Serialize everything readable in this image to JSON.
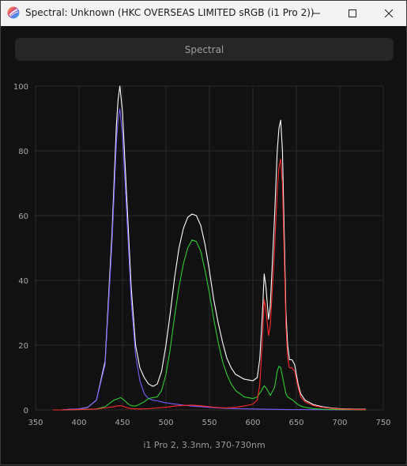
{
  "window": {
    "title": "Spectral: Unknown (HKC OVERSEAS LIMITED sRGB (i1 Pro 2))"
  },
  "tab": {
    "label": "Spectral"
  },
  "caption": "i1 Pro 2, 3.3nm, 370-730nm",
  "chart_data": {
    "type": "line",
    "title": "",
    "xlabel": "",
    "ylabel": "",
    "xlim": [
      350,
      750
    ],
    "ylim": [
      0,
      100
    ],
    "x_ticks": [
      350,
      400,
      450,
      500,
      550,
      600,
      650,
      700,
      750
    ],
    "y_ticks": [
      0,
      20,
      40,
      60,
      80,
      100
    ],
    "grid": true,
    "legend": "none",
    "series": [
      {
        "color": "#ffffff",
        "points": [
          [
            370,
            0
          ],
          [
            380,
            0
          ],
          [
            390,
            0.2
          ],
          [
            400,
            0.3
          ],
          [
            410,
            0.8
          ],
          [
            420,
            3
          ],
          [
            430,
            15
          ],
          [
            438,
            55
          ],
          [
            443,
            88
          ],
          [
            445,
            96
          ],
          [
            447,
            100
          ],
          [
            450,
            92
          ],
          [
            455,
            65
          ],
          [
            460,
            38
          ],
          [
            465,
            20
          ],
          [
            470,
            13
          ],
          [
            475,
            10
          ],
          [
            480,
            8
          ],
          [
            485,
            7.3
          ],
          [
            490,
            8
          ],
          [
            495,
            12
          ],
          [
            500,
            20
          ],
          [
            505,
            30
          ],
          [
            510,
            41
          ],
          [
            515,
            50
          ],
          [
            520,
            56
          ],
          [
            525,
            59.5
          ],
          [
            530,
            60.5
          ],
          [
            535,
            60
          ],
          [
            540,
            57
          ],
          [
            545,
            51
          ],
          [
            550,
            43
          ],
          [
            555,
            34
          ],
          [
            560,
            27
          ],
          [
            565,
            21
          ],
          [
            570,
            16
          ],
          [
            575,
            13
          ],
          [
            580,
            11
          ],
          [
            590,
            9.5
          ],
          [
            600,
            9
          ],
          [
            605,
            10
          ],
          [
            608,
            16
          ],
          [
            611,
            30
          ],
          [
            613,
            42
          ],
          [
            615,
            38
          ],
          [
            618,
            28
          ],
          [
            620,
            32
          ],
          [
            625,
            60
          ],
          [
            628,
            80
          ],
          [
            630,
            87
          ],
          [
            632,
            89.5
          ],
          [
            634,
            80
          ],
          [
            636,
            55
          ],
          [
            638,
            30
          ],
          [
            640,
            20
          ],
          [
            642,
            15.5
          ],
          [
            645,
            15.5
          ],
          [
            648,
            14
          ],
          [
            652,
            8
          ],
          [
            655,
            5
          ],
          [
            660,
            3
          ],
          [
            670,
            1.6
          ],
          [
            680,
            1
          ],
          [
            690,
            0.6
          ],
          [
            700,
            0.4
          ],
          [
            710,
            0.3
          ],
          [
            720,
            0.2
          ],
          [
            730,
            0.2
          ]
        ]
      },
      {
        "color": "#7a5cff",
        "points": [
          [
            370,
            0
          ],
          [
            380,
            0
          ],
          [
            390,
            0.2
          ],
          [
            400,
            0.3
          ],
          [
            410,
            0.8
          ],
          [
            420,
            3
          ],
          [
            430,
            14
          ],
          [
            438,
            52
          ],
          [
            443,
            83
          ],
          [
            445,
            90
          ],
          [
            447,
            93
          ],
          [
            450,
            85
          ],
          [
            455,
            60
          ],
          [
            460,
            34
          ],
          [
            465,
            17
          ],
          [
            470,
            9
          ],
          [
            475,
            5
          ],
          [
            480,
            3.5
          ],
          [
            485,
            3
          ],
          [
            490,
            2.8
          ],
          [
            495,
            2.5
          ],
          [
            500,
            2.2
          ],
          [
            510,
            1.8
          ],
          [
            520,
            1.5
          ],
          [
            530,
            1.2
          ],
          [
            540,
            1
          ],
          [
            550,
            0.8
          ],
          [
            560,
            0.6
          ],
          [
            570,
            0.5
          ],
          [
            580,
            0.4
          ],
          [
            600,
            0.3
          ],
          [
            620,
            0.2
          ],
          [
            640,
            0.1
          ],
          [
            660,
            0.1
          ],
          [
            700,
            0
          ],
          [
            730,
            0
          ]
        ]
      },
      {
        "color": "#2ecc2e",
        "points": [
          [
            370,
            0
          ],
          [
            380,
            0
          ],
          [
            390,
            0
          ],
          [
            400,
            0.1
          ],
          [
            420,
            0.3
          ],
          [
            430,
            1
          ],
          [
            435,
            2
          ],
          [
            440,
            3
          ],
          [
            445,
            3.5
          ],
          [
            448,
            3.8
          ],
          [
            452,
            3
          ],
          [
            456,
            2
          ],
          [
            460,
            1.3
          ],
          [
            465,
            1.2
          ],
          [
            470,
            1.8
          ],
          [
            475,
            2.5
          ],
          [
            480,
            3.5
          ],
          [
            485,
            3.8
          ],
          [
            490,
            4
          ],
          [
            495,
            6
          ],
          [
            500,
            11
          ],
          [
            505,
            19
          ],
          [
            510,
            29
          ],
          [
            515,
            38
          ],
          [
            520,
            45
          ],
          [
            525,
            50
          ],
          [
            530,
            52.5
          ],
          [
            535,
            52
          ],
          [
            540,
            49
          ],
          [
            545,
            43
          ],
          [
            550,
            36
          ],
          [
            555,
            28
          ],
          [
            560,
            21
          ],
          [
            565,
            15
          ],
          [
            570,
            11
          ],
          [
            575,
            8
          ],
          [
            580,
            6
          ],
          [
            590,
            4
          ],
          [
            600,
            3.5
          ],
          [
            605,
            4
          ],
          [
            610,
            6
          ],
          [
            613,
            7.5
          ],
          [
            616,
            6.5
          ],
          [
            620,
            4.5
          ],
          [
            625,
            7
          ],
          [
            628,
            12
          ],
          [
            630,
            13.5
          ],
          [
            632,
            13
          ],
          [
            635,
            9
          ],
          [
            638,
            5
          ],
          [
            640,
            4
          ],
          [
            643,
            3.5
          ],
          [
            646,
            3
          ],
          [
            650,
            2
          ],
          [
            655,
            1.2
          ],
          [
            660,
            0.8
          ],
          [
            670,
            0.4
          ],
          [
            680,
            0.2
          ],
          [
            700,
            0.1
          ],
          [
            730,
            0
          ]
        ]
      },
      {
        "color": "#ff2a2a",
        "points": [
          [
            370,
            0
          ],
          [
            380,
            0
          ],
          [
            400,
            0.1
          ],
          [
            420,
            0.3
          ],
          [
            430,
            0.6
          ],
          [
            440,
            1
          ],
          [
            445,
            1.3
          ],
          [
            450,
            1.2
          ],
          [
            455,
            0.7
          ],
          [
            460,
            0.4
          ],
          [
            470,
            0.3
          ],
          [
            480,
            0.4
          ],
          [
            490,
            0.6
          ],
          [
            500,
            0.8
          ],
          [
            510,
            1.2
          ],
          [
            520,
            1.4
          ],
          [
            530,
            1.5
          ],
          [
            540,
            1.3
          ],
          [
            550,
            1
          ],
          [
            560,
            0.7
          ],
          [
            570,
            0.6
          ],
          [
            580,
            0.8
          ],
          [
            590,
            1.2
          ],
          [
            600,
            1.8
          ],
          [
            605,
            3
          ],
          [
            608,
            8
          ],
          [
            611,
            22
          ],
          [
            613,
            34
          ],
          [
            615,
            31
          ],
          [
            618,
            23
          ],
          [
            620,
            26
          ],
          [
            625,
            50
          ],
          [
            628,
            68
          ],
          [
            630,
            75
          ],
          [
            632,
            77.5
          ],
          [
            634,
            70
          ],
          [
            636,
            48
          ],
          [
            638,
            26
          ],
          [
            640,
            16
          ],
          [
            642,
            13
          ],
          [
            645,
            13
          ],
          [
            648,
            12
          ],
          [
            652,
            7
          ],
          [
            655,
            4
          ],
          [
            660,
            2.5
          ],
          [
            670,
            1.3
          ],
          [
            680,
            0.8
          ],
          [
            690,
            0.5
          ],
          [
            700,
            0.3
          ],
          [
            710,
            0.2
          ],
          [
            720,
            0.1
          ],
          [
            730,
            0.1
          ]
        ]
      }
    ]
  }
}
